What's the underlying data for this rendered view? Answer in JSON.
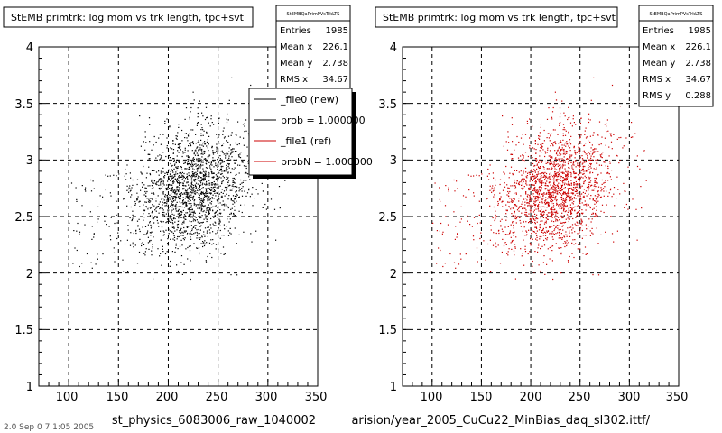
{
  "panels": [
    {
      "title": "StEMB primtrk: log mom vs trk length, tpc+svt",
      "xtitle": "st_physics_6083006_raw_1040002",
      "stats": {
        "header": "StEMBQaPrimPVsTrkLTS",
        "rows": [
          {
            "label": "Entries",
            "value": "1985"
          },
          {
            "label": "Mean x",
            "value": "226.1"
          },
          {
            "label": "Mean y",
            "value": "2.738"
          },
          {
            "label": "RMS x",
            "value": "34.67"
          }
        ]
      },
      "legend": [
        {
          "label": "_file0 (new)",
          "color": "#000000"
        },
        {
          "label": "prob = 1.000000",
          "color": "#000000"
        },
        {
          "label": "_file1 (ref)",
          "color": "#cc0000"
        },
        {
          "label": "probN = 1.000000",
          "color": "#cc0000"
        }
      ]
    },
    {
      "title": "StEMB primtrk: log mom vs trk length, tpc+svt",
      "xtitle": "arision/year_2005_CuCu22_MinBias_daq_sl302.ittf/",
      "stats": {
        "header": "StEMBQaPrimPVsTrkLTS",
        "rows": [
          {
            "label": "Entries",
            "value": "1985"
          },
          {
            "label": "Mean x",
            "value": "226.1"
          },
          {
            "label": "Mean y",
            "value": "2.738"
          },
          {
            "label": "RMS x",
            "value": "34.67"
          },
          {
            "label": "RMS y",
            "value": "0.288"
          }
        ]
      }
    }
  ],
  "footer_text": "2.0 Sep 0 7 1:05 2005",
  "chart_data": [
    {
      "type": "scatter",
      "title": "StEMB primtrk: log mom vs trk length, tpc+svt",
      "xlabel": "st_physics_6083006_raw_1040002",
      "xlim": [
        70,
        350
      ],
      "ylim": [
        1,
        4
      ],
      "xticks": [
        "100",
        "150",
        "200",
        "250",
        "300",
        "350"
      ],
      "yticks": [
        "1",
        "1.5",
        "2",
        "2.5",
        "3",
        "3.5",
        "4"
      ],
      "grid": true,
      "legend_position": "top-right",
      "series": [
        {
          "name": "_file0 (new)",
          "color": "#000000",
          "entries": 1985,
          "mean_x": 226.1,
          "mean_y": 2.738,
          "rms_x": 34.67,
          "rms_y": 0.288
        }
      ]
    },
    {
      "type": "scatter",
      "title": "StEMB primtrk: log mom vs trk length, tpc+svt",
      "xlabel": "arision/year_2005_CuCu22_MinBias_daq_sl302.ittf/",
      "xlim": [
        70,
        350
      ],
      "ylim": [
        1,
        4
      ],
      "xticks": [
        "100",
        "150",
        "200",
        "250",
        "300",
        "350"
      ],
      "yticks": [
        "1",
        "1.5",
        "2",
        "2.5",
        "3",
        "3.5",
        "4"
      ],
      "grid": true,
      "series": [
        {
          "name": "_file1 (ref)",
          "color": "#cc0000",
          "entries": 1985,
          "mean_x": 226.1,
          "mean_y": 2.738,
          "rms_x": 34.67,
          "rms_y": 0.288
        }
      ]
    }
  ]
}
